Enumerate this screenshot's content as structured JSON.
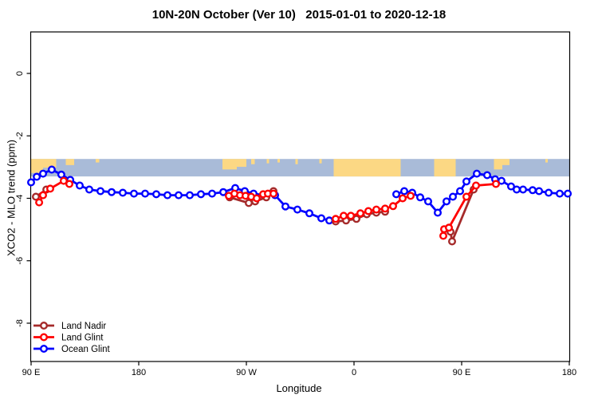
{
  "chart_data": {
    "type": "line",
    "title": "10N-20N October (Ver 10)   2015-01-01 to 2020-12-18",
    "xlabel": "Longitude",
    "ylabel": "XCO2 - MLO trend (ppm)",
    "xlim": [
      90,
      540
    ],
    "ylim": [
      -9.2,
      1.3
    ],
    "grid": false,
    "x_ticks": [
      {
        "v": 90,
        "label": "90 E"
      },
      {
        "v": 180,
        "label": "180"
      },
      {
        "v": 270,
        "label": "90 W"
      },
      {
        "v": 360,
        "label": "0"
      },
      {
        "v": 450,
        "label": "90 E"
      },
      {
        "v": 540,
        "label": "180"
      }
    ],
    "y_ticks": [
      {
        "v": 0,
        "label": "0"
      },
      {
        "v": -2,
        "label": "-2"
      },
      {
        "v": -4,
        "label": "-4"
      },
      {
        "v": -6,
        "label": "-6"
      },
      {
        "v": -8,
        "label": "-8"
      }
    ],
    "legend_position": "bottom-left",
    "map_band": {
      "top_value": -2.74,
      "bottom_value": -3.3,
      "ocean_color": "#A9BBD8",
      "land_color": "#FCD884",
      "land_patches": [
        {
          "from": 90,
          "to": 100,
          "frac": 0.8
        },
        {
          "from": 100,
          "to": 111,
          "frac": 0.5
        },
        {
          "from": 119,
          "to": 126,
          "frac": 0.35
        },
        {
          "from": 144,
          "to": 147,
          "frac": 0.2
        },
        {
          "from": 250,
          "to": 262,
          "frac": 0.6
        },
        {
          "from": 262,
          "to": 270,
          "frac": 0.45
        },
        {
          "from": 274,
          "to": 277,
          "frac": 0.3
        },
        {
          "from": 287,
          "to": 289,
          "frac": 0.25
        },
        {
          "from": 296,
          "to": 298,
          "frac": 0.2
        },
        {
          "from": 311,
          "to": 313,
          "frac": 0.3
        },
        {
          "from": 331,
          "to": 333,
          "frac": 0.25
        },
        {
          "from": 343,
          "to": 399,
          "frac": 1.0
        },
        {
          "from": 427,
          "to": 445,
          "frac": 1.0
        },
        {
          "from": 477,
          "to": 484,
          "frac": 0.6
        },
        {
          "from": 484,
          "to": 490,
          "frac": 0.35
        },
        {
          "from": 520,
          "to": 522,
          "frac": 0.2
        }
      ]
    },
    "series": [
      {
        "name": "Ocean Glint",
        "color": "#0000FF",
        "marker": "open-circle",
        "segments": [
          [
            [
              90,
              -3.49
            ],
            [
              94.7,
              -3.31
            ],
            [
              100,
              -3.21
            ],
            [
              107.3,
              -3.08
            ],
            [
              115.3,
              -3.24
            ],
            [
              122.7,
              -3.41
            ],
            [
              130.7,
              -3.59
            ],
            [
              138.7,
              -3.72
            ],
            [
              148,
              -3.77
            ],
            [
              157.3,
              -3.8
            ],
            [
              166.7,
              -3.82
            ],
            [
              176,
              -3.85
            ],
            [
              185.3,
              -3.85
            ],
            [
              194.7,
              -3.87
            ],
            [
              204,
              -3.9
            ],
            [
              213.3,
              -3.9
            ],
            [
              222.7,
              -3.9
            ],
            [
              232,
              -3.87
            ],
            [
              241.3,
              -3.85
            ],
            [
              250.7,
              -3.8
            ],
            [
              260.7,
              -3.67
            ],
            [
              268.7,
              -3.77
            ],
            [
              276,
              -3.85
            ],
            [
              284.7,
              -3.9
            ],
            [
              294,
              -3.9
            ],
            [
              302.7,
              -4.26
            ],
            [
              312.7,
              -4.36
            ],
            [
              322.7,
              -4.48
            ],
            [
              332.7,
              -4.64
            ],
            [
              339.3,
              -4.71
            ]
          ],
          [
            [
              395.3,
              -3.87
            ],
            [
              402,
              -3.77
            ],
            [
              408.7,
              -3.82
            ],
            [
              415.3,
              -3.97
            ],
            [
              422,
              -4.1
            ],
            [
              430,
              -4.46
            ],
            [
              437.3,
              -4.1
            ],
            [
              442.7,
              -3.95
            ],
            [
              448.7,
              -3.77
            ],
            [
              454,
              -3.46
            ],
            [
              462.7,
              -3.21
            ],
            [
              471.3,
              -3.26
            ],
            [
              478,
              -3.39
            ],
            [
              483.3,
              -3.44
            ],
            [
              491.3,
              -3.62
            ],
            [
              496,
              -3.72
            ],
            [
              501.3,
              -3.72
            ],
            [
              509.3,
              -3.74
            ],
            [
              514.7,
              -3.77
            ],
            [
              522.7,
              -3.82
            ],
            [
              532,
              -3.85
            ],
            [
              538.7,
              -3.85
            ]
          ]
        ]
      },
      {
        "name": "Land Nadir",
        "color": "#A52A2A",
        "marker": "open-circle",
        "segments": [
          [
            [
              94,
              -3.95
            ],
            [
              102.7,
              -3.72
            ]
          ],
          [
            [
              256,
              -3.97
            ],
            [
              272,
              -4.15
            ],
            [
              277.3,
              -4.1
            ],
            [
              286.7,
              -3.97
            ],
            [
              292.7,
              -3.77
            ]
          ],
          [
            [
              344.7,
              -4.74
            ],
            [
              353.3,
              -4.71
            ],
            [
              362,
              -4.66
            ],
            [
              370.7,
              -4.51
            ],
            [
              378.7,
              -4.46
            ],
            [
              386,
              -4.43
            ]
          ],
          [
            [
              440.7,
              -5.07
            ],
            [
              442,
              -5.38
            ],
            [
              460,
              -3.72
            ]
          ]
        ]
      },
      {
        "name": "Land Glint",
        "color": "#FF0000",
        "marker": "open-circle",
        "segments": [
          [
            [
              96.7,
              -4.13
            ],
            [
              100,
              -3.9
            ],
            [
              106,
              -3.69
            ],
            [
              117.3,
              -3.44
            ],
            [
              122,
              -3.54
            ]
          ],
          [
            [
              255.3,
              -3.92
            ],
            [
              260,
              -3.85
            ],
            [
              264.7,
              -3.9
            ],
            [
              269.3,
              -3.92
            ],
            [
              274,
              -3.95
            ],
            [
              278.7,
              -4.0
            ],
            [
              284,
              -3.87
            ],
            [
              288,
              -3.85
            ],
            [
              292.7,
              -3.85
            ]
          ],
          [
            [
              344.7,
              -4.66
            ],
            [
              351.3,
              -4.56
            ],
            [
              357.3,
              -4.56
            ],
            [
              365.3,
              -4.48
            ],
            [
              372,
              -4.41
            ],
            [
              378.7,
              -4.36
            ],
            [
              386,
              -4.33
            ],
            [
              392.7,
              -4.25
            ],
            [
              400.7,
              -4.0
            ],
            [
              407.3,
              -3.92
            ]
          ],
          [
            [
              434.7,
              -5.2
            ],
            [
              435.3,
              -4.99
            ],
            [
              439.3,
              -4.94
            ],
            [
              454,
              -3.95
            ],
            [
              462,
              -3.59
            ],
            [
              478.7,
              -3.54
            ]
          ]
        ]
      }
    ],
    "legend_order": [
      "Land Nadir",
      "Land Glint",
      "Ocean Glint"
    ]
  }
}
